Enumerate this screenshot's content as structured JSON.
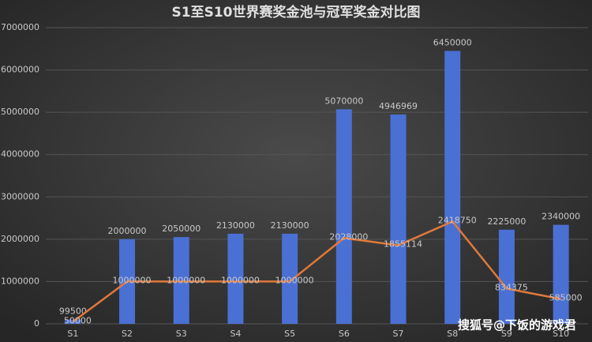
{
  "chart_data": {
    "type": "bar",
    "title": "S1至S10世界赛奖金池与冠军奖金对比图",
    "categories": [
      "S1",
      "S2",
      "S3",
      "S4",
      "S5",
      "S6",
      "S7",
      "S8",
      "S9",
      "S10"
    ],
    "series": [
      {
        "color": "#4a70d4",
        "values": [
          99500,
          2000000,
          2050000,
          2130000,
          2130000,
          5070000,
          4946969,
          6450000,
          2225000,
          2340000
        ]
      },
      {
        "type": "line",
        "color": "#e0793a",
        "values": [
          50000,
          1000000,
          1000000,
          1000000,
          1000000,
          2028000,
          1855114,
          2418750,
          834375,
          585000
        ]
      }
    ],
    "ylim": [
      0,
      7000000
    ],
    "yticks": [
      0,
      1000000,
      2000000,
      3000000,
      4000000,
      5000000,
      6000000,
      7000000
    ],
    "grid": true,
    "watermark": "搜狐号@下饭的游戏君"
  }
}
